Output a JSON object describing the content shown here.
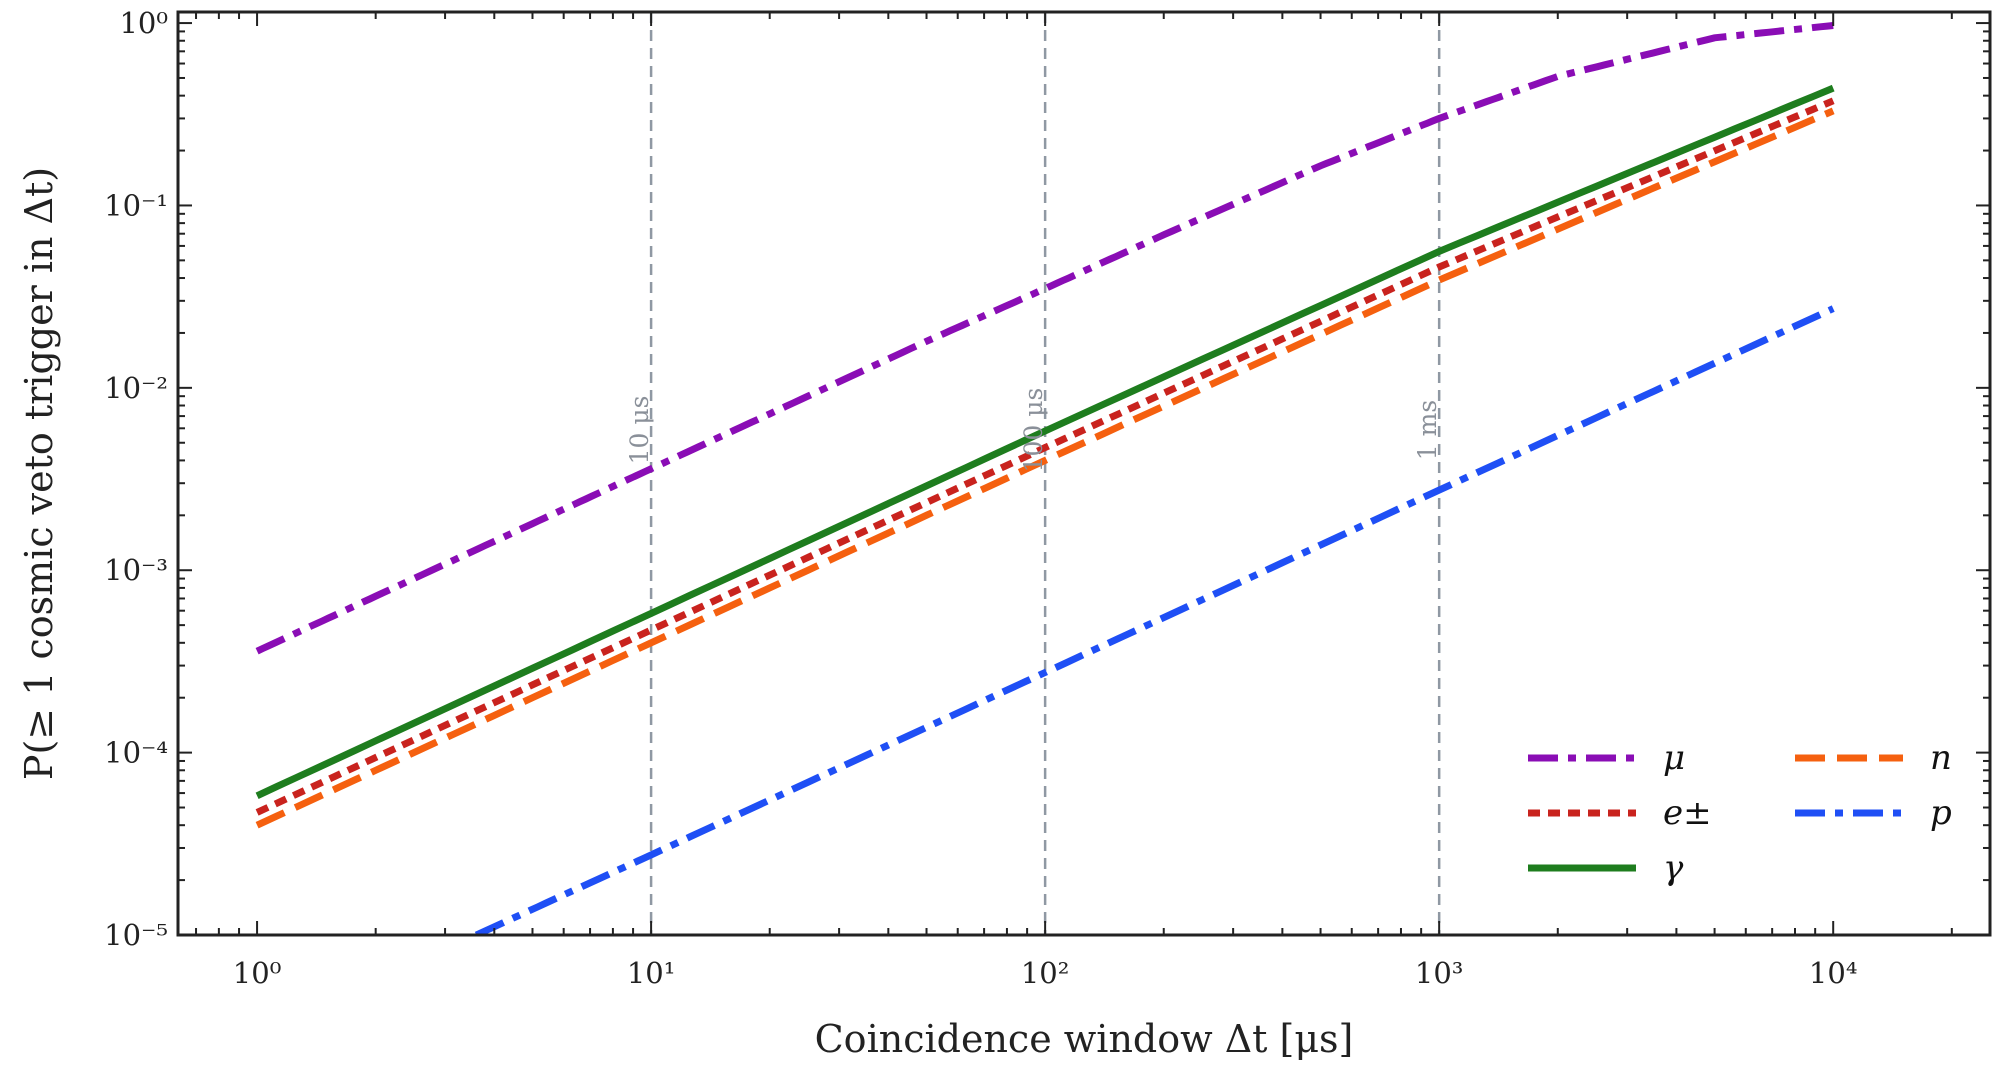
{
  "chart_data": {
    "type": "line",
    "xlabel": "Coincidence window Δt [μs]",
    "ylabel": "P(≥ 1 cosmic veto trigger in Δt)",
    "xscale": "log",
    "yscale": "log",
    "xlim": [
      0.63,
      25000
    ],
    "ylim": [
      1e-05,
      1.15
    ],
    "grid": false,
    "legend_position": "bottom-right",
    "x_ticks": [
      {
        "value": 1,
        "label": "10⁰"
      },
      {
        "value": 10,
        "label": "10¹"
      },
      {
        "value": 100,
        "label": "10²"
      },
      {
        "value": 1000,
        "label": "10³"
      },
      {
        "value": 10000,
        "label": "10⁴"
      }
    ],
    "y_ticks": [
      {
        "value": 1e-05,
        "label": "10⁻⁵"
      },
      {
        "value": 0.0001,
        "label": "10⁻⁴"
      },
      {
        "value": 0.001,
        "label": "10⁻³"
      },
      {
        "value": 0.01,
        "label": "10⁻²"
      },
      {
        "value": 0.1,
        "label": "10⁻¹"
      },
      {
        "value": 1,
        "label": "10⁰"
      }
    ],
    "reference_lines": [
      {
        "x": 10,
        "label": "10 μs",
        "color": "#8f98a3"
      },
      {
        "x": 100,
        "label": "100 μs",
        "color": "#8f98a3"
      },
      {
        "x": 1000,
        "label": "1 ms",
        "color": "#8f98a3"
      }
    ],
    "series": [
      {
        "name": "μ",
        "color": "#8a0db5",
        "style": "dashdot",
        "x": [
          1,
          2,
          5,
          10,
          20,
          50,
          100,
          200,
          500,
          1000,
          2000,
          5000,
          10000
        ],
        "y": [
          0.00036,
          0.00072,
          0.0018,
          0.0036,
          0.0072,
          0.018,
          0.035,
          0.069,
          0.165,
          0.3,
          0.51,
          0.83,
          0.97
        ]
      },
      {
        "name": "e±",
        "color": "#c9231e",
        "style": "dotted",
        "x": [
          1,
          10,
          100,
          1000,
          10000
        ],
        "y": [
          4.7e-05,
          0.00047,
          0.0047,
          0.046,
          0.375
        ]
      },
      {
        "name": "γ",
        "color": "#1e7d1e",
        "style": "solid",
        "x": [
          1,
          10,
          100,
          1000,
          10000
        ],
        "y": [
          5.8e-05,
          0.00058,
          0.0058,
          0.056,
          0.44
        ]
      },
      {
        "name": "n",
        "color": "#f5600f",
        "style": "dashed",
        "x": [
          1,
          10,
          100,
          1000,
          10000
        ],
        "y": [
          4e-05,
          0.0004,
          0.004,
          0.039,
          0.33
        ]
      },
      {
        "name": "p",
        "color": "#1f4ff5",
        "style": "dashdot",
        "x": [
          3.6,
          10,
          100,
          1000,
          10000
        ],
        "y": [
          1e-05,
          2.75e-05,
          0.000275,
          0.00275,
          0.0272
        ]
      }
    ]
  }
}
